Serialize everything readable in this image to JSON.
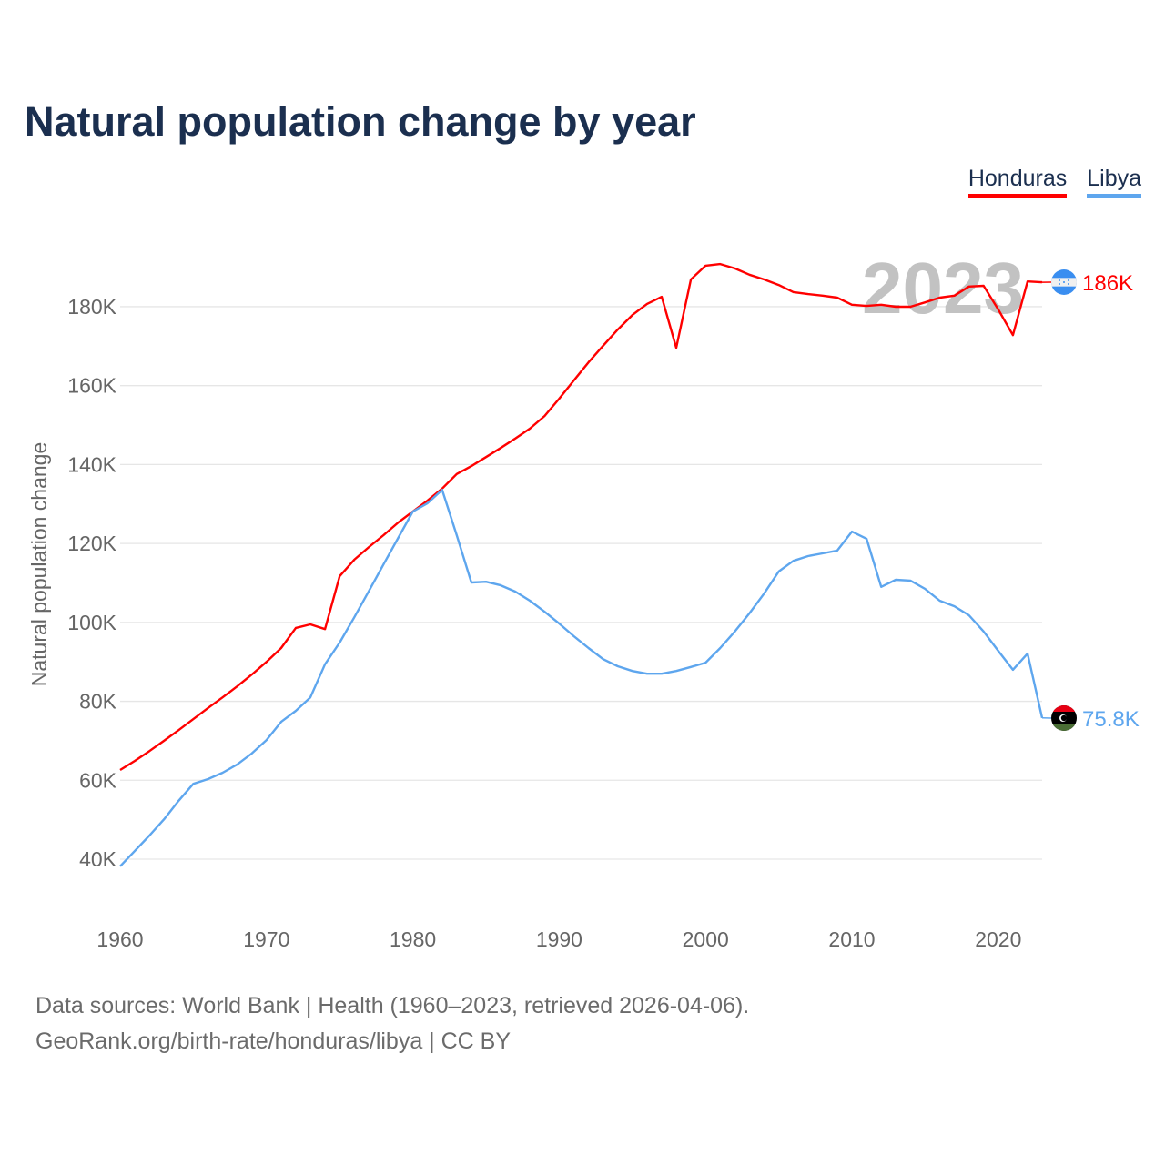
{
  "title": "Natural population change by year",
  "legend": [
    {
      "label": "Honduras",
      "color": "#ff0000"
    },
    {
      "label": "Libya",
      "color": "#5ea6ee"
    }
  ],
  "footer": {
    "line1": "Data sources: World Bank | Health (1960–2023, retrieved 2026-04-06).",
    "line2": "GeoRank.org/birth-rate/honduras/libya | CC BY"
  },
  "chart_data": {
    "type": "line",
    "title": "Natural population change by year",
    "xlabel": "",
    "ylabel": "Natural population change",
    "year_watermark": "2023",
    "xlim": [
      1960,
      2023
    ],
    "ylim": [
      40000,
      190000
    ],
    "x_ticks": [
      "1960",
      "1970",
      "1980",
      "1990",
      "2000",
      "2010",
      "2020"
    ],
    "y_ticks": [
      {
        "value": 40,
        "label": "40K"
      },
      {
        "value": 60,
        "label": "60K"
      },
      {
        "value": 80,
        "label": "80K"
      },
      {
        "value": 100,
        "label": "100K"
      },
      {
        "value": 120,
        "label": "120K"
      },
      {
        "value": 140,
        "label": "140K"
      },
      {
        "value": 160,
        "label": "160K"
      },
      {
        "value": 180,
        "label": "180K"
      }
    ],
    "grid": true,
    "legend_position": "top-right",
    "x_start": 1960,
    "series": [
      {
        "name": "Honduras",
        "color": "#ff0000",
        "end_label": "186K",
        "flag": "honduras-flag",
        "values_thousands": [
          62.6,
          64.9,
          67.4,
          70,
          72.7,
          75.5,
          78.3,
          81,
          83.8,
          86.8,
          90,
          93.5,
          98.6,
          99.5,
          98.3,
          111.7,
          115.9,
          119.1,
          122.1,
          125.3,
          128.1,
          130.9,
          133.9,
          137.6,
          139.6,
          141.9,
          144.2,
          146.6,
          149.1,
          152.3,
          156.7,
          161.3,
          165.9,
          170.1,
          174.2,
          177.9,
          180.7,
          182.5,
          169.6,
          186.9,
          190.4,
          190.8,
          189.7,
          188.1,
          186.9,
          185.5,
          183.7,
          183.2,
          182.8,
          182.3,
          180.5,
          180.2,
          180.5,
          180,
          180,
          181.1,
          182.3,
          182.8,
          185.1,
          185.3,
          179.3,
          172.8,
          186.4,
          186.2
        ]
      },
      {
        "name": "Libya",
        "color": "#5ea6ee",
        "end_label": "75.8K",
        "flag": "libya-flag",
        "values_thousands": [
          38.2,
          42.1,
          46,
          50.1,
          54.8,
          59.1,
          60.3,
          61.9,
          64,
          66.8,
          70.2,
          74.8,
          77.6,
          81,
          89.4,
          94.9,
          101.3,
          108,
          114.7,
          121.4,
          128.1,
          130.2,
          133.6,
          122.1,
          110.1,
          110.3,
          109.4,
          107.8,
          105.5,
          102.7,
          99.7,
          96.5,
          93.5,
          90.7,
          88.9,
          87.7,
          87,
          87,
          87.7,
          88.7,
          89.8,
          93.5,
          97.7,
          102.3,
          107.3,
          112.9,
          115.6,
          116.8,
          117.5,
          118.2,
          123,
          121.2,
          109,
          110.8,
          110.6,
          108.5,
          105.5,
          104.1,
          101.8,
          97.7,
          92.8,
          88,
          92.1,
          75.8
        ]
      }
    ]
  }
}
